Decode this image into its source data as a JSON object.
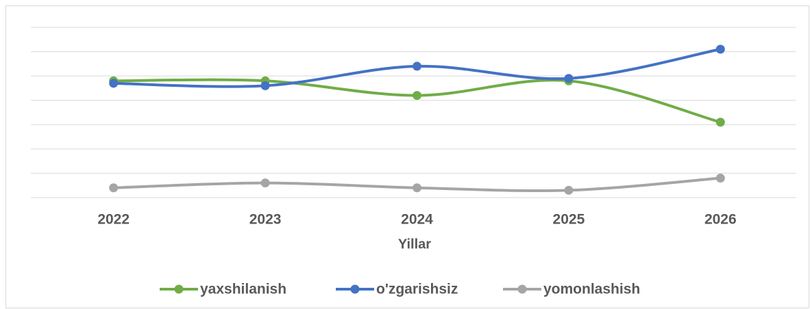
{
  "chart_data": {
    "type": "line",
    "x_label": "Yillar",
    "categories": [
      "2022",
      "2023",
      "2024",
      "2025",
      "2026"
    ],
    "series": [
      {
        "name": "yaxshilanish",
        "color": "#70ad47",
        "values": [
          4.8,
          4.8,
          4.2,
          4.8,
          3.1
        ]
      },
      {
        "name": "o'zgarishsiz",
        "color": "#4472c4",
        "values": [
          4.7,
          4.6,
          5.4,
          4.9,
          6.1
        ]
      },
      {
        "name": "yomonlashish",
        "color": "#a5a5a5",
        "values": [
          0.4,
          0.6,
          0.4,
          0.3,
          0.8
        ]
      }
    ],
    "ylim": [
      0,
      7
    ],
    "yticks": [
      0,
      1,
      2,
      3,
      4,
      5,
      6,
      7
    ],
    "grid": true,
    "smooth": true,
    "legend": "bottom"
  }
}
